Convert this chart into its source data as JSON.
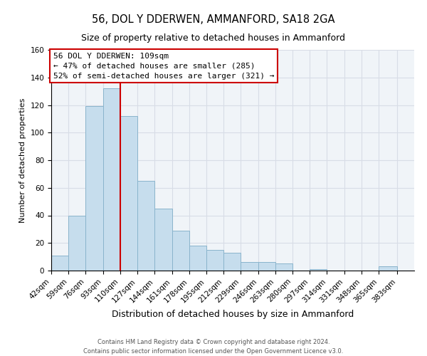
{
  "title": "56, DOL Y DDERWEN, AMMANFORD, SA18 2GA",
  "subtitle": "Size of property relative to detached houses in Ammanford",
  "xlabel": "Distribution of detached houses by size in Ammanford",
  "ylabel": "Number of detached properties",
  "footer_line1": "Contains HM Land Registry data © Crown copyright and database right 2024.",
  "footer_line2": "Contains public sector information licensed under the Open Government Licence v3.0.",
  "bin_labels": [
    "42sqm",
    "59sqm",
    "76sqm",
    "93sqm",
    "110sqm",
    "127sqm",
    "144sqm",
    "161sqm",
    "178sqm",
    "195sqm",
    "212sqm",
    "229sqm",
    "246sqm",
    "263sqm",
    "280sqm",
    "297sqm",
    "314sqm",
    "331sqm",
    "348sqm",
    "365sqm",
    "383sqm"
  ],
  "bar_values": [
    11,
    40,
    119,
    132,
    112,
    65,
    45,
    29,
    18,
    15,
    13,
    6,
    6,
    5,
    0,
    1,
    0,
    0,
    0,
    3,
    0
  ],
  "bar_color": "#c6dded",
  "bar_edge_color": "#8ab4cc",
  "grid_color": "#d8dde6",
  "property_line_color": "#cc0000",
  "annotation_box_edge": "#cc0000",
  "annotation_box_color": "#ffffff",
  "property_label": "56 DOL Y DDERWEN: 109sqm",
  "annotation_line1": "← 47% of detached houses are smaller (285)",
  "annotation_line2": "52% of semi-detached houses are larger (321) →",
  "ylim": [
    0,
    160
  ],
  "yticks": [
    0,
    20,
    40,
    60,
    80,
    100,
    120,
    140,
    160
  ],
  "bin_edges": [
    42,
    59,
    76,
    93,
    110,
    127,
    144,
    161,
    178,
    195,
    212,
    229,
    246,
    263,
    280,
    297,
    314,
    331,
    348,
    365,
    383,
    400
  ],
  "property_line_x": 110,
  "ax_facecolor": "#f0f4f8",
  "title_fontsize": 10.5,
  "subtitle_fontsize": 9,
  "ylabel_fontsize": 8,
  "xlabel_fontsize": 9,
  "tick_fontsize": 7.5,
  "annotation_fontsize": 8,
  "footer_fontsize": 6
}
